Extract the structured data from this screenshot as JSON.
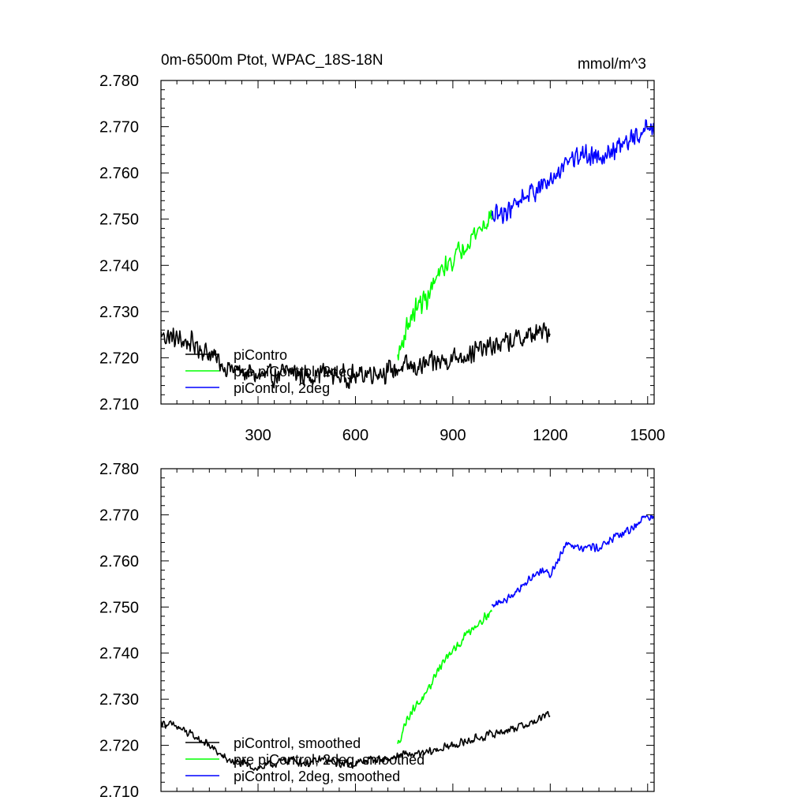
{
  "chart_data": [
    {
      "type": "line",
      "title": "0m-6500m Ptot, WPAC_18S-18N",
      "units": "mmol/m^3",
      "xlim": [
        1,
        1520
      ],
      "ylim": [
        2.71,
        2.78
      ],
      "yticks": [
        2.71,
        2.72,
        2.73,
        2.74,
        2.75,
        2.76,
        2.77,
        2.78
      ],
      "ytick_labels": [
        "2.710",
        "2.720",
        "2.730",
        "2.740",
        "2.750",
        "2.760",
        "2.770",
        "2.780"
      ],
      "xticks": [
        300,
        600,
        900,
        1200,
        1500
      ],
      "xtick_labels": [
        "300",
        "600",
        "900",
        "1200",
        "1500"
      ],
      "legend_placement": "bottom-left",
      "series": [
        {
          "name": "piContro",
          "color": "#000000",
          "x": [
            1,
            50,
            100,
            150,
            200,
            250,
            300,
            350,
            400,
            450,
            500,
            550,
            600,
            650,
            700,
            750,
            800,
            850,
            900,
            950,
            1000,
            1050,
            1100,
            1150,
            1200
          ],
          "y": [
            2.725,
            2.724,
            2.723,
            2.721,
            2.718,
            2.717,
            2.716,
            2.716,
            2.717,
            2.716,
            2.717,
            2.716,
            2.716,
            2.717,
            2.717,
            2.718,
            2.718,
            2.719,
            2.72,
            2.721,
            2.722,
            2.723,
            2.724,
            2.725,
            2.726
          ],
          "noise": 0.0028
        },
        {
          "name": "pre piControl, 2deg",
          "color": "#00ff00",
          "x": [
            730,
            760,
            790,
            820,
            850,
            880,
            910,
            940,
            970,
            1000,
            1020
          ],
          "y": [
            2.72,
            2.727,
            2.731,
            2.733,
            2.737,
            2.74,
            2.742,
            2.745,
            2.747,
            2.749,
            2.751
          ],
          "noise": 0.0028
        },
        {
          "name": "piControl, 2deg",
          "color": "#0000ff",
          "x": [
            1020,
            1070,
            1120,
            1170,
            1200,
            1250,
            1300,
            1350,
            1400,
            1450,
            1500,
            1520
          ],
          "y": [
            2.75,
            2.752,
            2.755,
            2.757,
            2.758,
            2.763,
            2.764,
            2.764,
            2.765,
            2.767,
            2.77,
            2.769
          ],
          "noise": 0.0028
        }
      ]
    },
    {
      "type": "line",
      "xlim": [
        1,
        1520
      ],
      "ylim": [
        2.71,
        2.78
      ],
      "yticks": [
        2.71,
        2.72,
        2.73,
        2.74,
        2.75,
        2.76,
        2.77,
        2.78
      ],
      "ytick_labels": [
        "2.710",
        "2.720",
        "2.730",
        "2.740",
        "2.750",
        "2.760",
        "2.770",
        "2.780"
      ],
      "xticks": [
        300,
        600,
        900,
        1200,
        1500
      ],
      "legend_placement": "bottom-left",
      "series": [
        {
          "name": "piControl, smoothed",
          "color": "#000000",
          "x": [
            1,
            50,
            100,
            150,
            200,
            250,
            300,
            350,
            400,
            450,
            500,
            550,
            600,
            650,
            700,
            750,
            800,
            850,
            900,
            950,
            1000,
            1050,
            1100,
            1150,
            1200
          ],
          "y": [
            2.725,
            2.724,
            2.722,
            2.72,
            2.717,
            2.716,
            2.715,
            2.716,
            2.717,
            2.716,
            2.717,
            2.716,
            2.716,
            2.717,
            2.717,
            2.718,
            2.718,
            2.719,
            2.72,
            2.721,
            2.722,
            2.723,
            2.724,
            2.725,
            2.727
          ],
          "noise": 0.0011
        },
        {
          "name": "pre piControl, 2deg, smoothed",
          "color": "#00ff00",
          "x": [
            730,
            760,
            790,
            820,
            850,
            880,
            910,
            940,
            970,
            1000,
            1020
          ],
          "y": [
            2.72,
            2.726,
            2.729,
            2.731,
            2.736,
            2.739,
            2.741,
            2.744,
            2.746,
            2.748,
            2.749
          ],
          "noise": 0.0011
        },
        {
          "name": "piControl, 2deg, smoothed",
          "color": "#0000ff",
          "x": [
            1020,
            1070,
            1120,
            1170,
            1200,
            1250,
            1300,
            1350,
            1400,
            1450,
            1500,
            1520
          ],
          "y": [
            2.75,
            2.752,
            2.755,
            2.758,
            2.757,
            2.764,
            2.763,
            2.763,
            2.765,
            2.767,
            2.77,
            2.769
          ],
          "noise": 0.0011
        }
      ]
    }
  ]
}
